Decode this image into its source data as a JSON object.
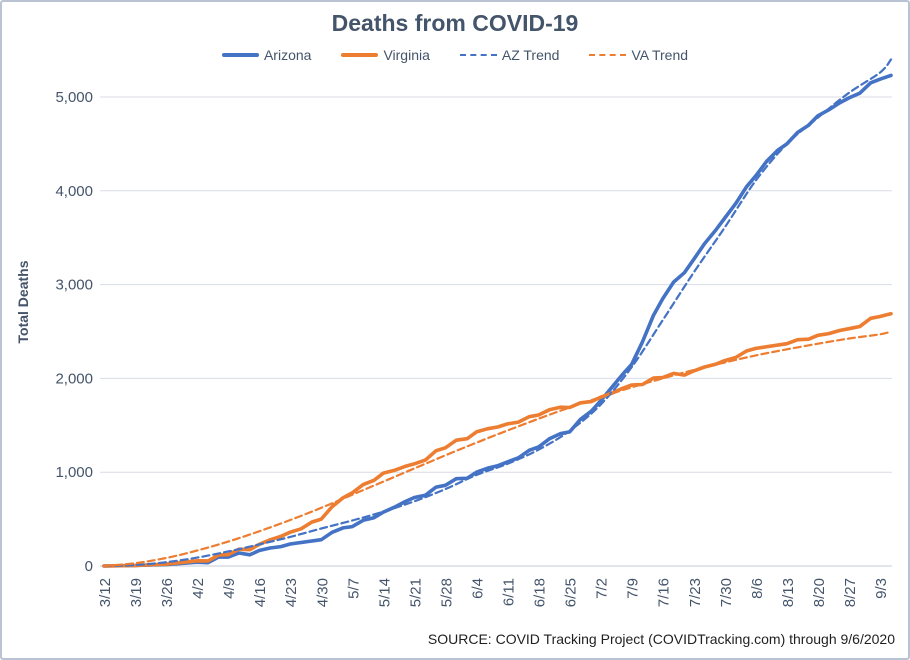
{
  "chart_data": {
    "type": "line",
    "title": "Deaths from COVID-19",
    "ylabel": "Total Deaths",
    "xlabel": "",
    "source_note": "SOURCE: COVID Tracking Project (COVIDTracking.com) through 9/6/2020",
    "ylim": [
      0,
      5000
    ],
    "ytick_interval": 1000,
    "ytick_labels": [
      "0",
      "1,000",
      "2,000",
      "3,000",
      "4,000",
      "5,000"
    ],
    "grid": true,
    "legend_position": "top",
    "x_note": "series lines extend about 3 days beyond the last 9/3 tick (through 9/6)",
    "categories": [
      "3/12",
      "3/19",
      "3/26",
      "4/2",
      "4/9",
      "4/16",
      "4/23",
      "4/30",
      "5/7",
      "5/14",
      "5/21",
      "5/28",
      "6/4",
      "6/11",
      "6/18",
      "6/25",
      "7/2",
      "7/9",
      "7/16",
      "7/23",
      "7/30",
      "8/6",
      "8/13",
      "8/20",
      "8/27",
      "9/3"
    ],
    "series": [
      {
        "name": "Arizona",
        "color": "#4472C4",
        "style": "solid",
        "values": [
          0,
          5,
          15,
          40,
          95,
          165,
          235,
          280,
          420,
          575,
          730,
          860,
          1000,
          1110,
          1270,
          1430,
          1760,
          2150,
          2850,
          3270,
          3710,
          4160,
          4500,
          4800,
          4990,
          5190,
          5230
        ]
      },
      {
        "name": "Virginia",
        "color": "#ED7D31",
        "style": "solid",
        "values": [
          0,
          5,
          20,
          55,
          120,
          230,
          360,
          500,
          780,
          990,
          1090,
          1260,
          1430,
          1515,
          1610,
          1690,
          1800,
          1930,
          2010,
          2080,
          2190,
          2320,
          2370,
          2460,
          2530,
          2660,
          2690
        ]
      },
      {
        "name": "AZ Trend",
        "color": "#4472C4",
        "style": "dashed",
        "values": [
          0,
          10,
          40,
          90,
          155,
          230,
          310,
          400,
          485,
          580,
          690,
          820,
          970,
          1090,
          1240,
          1440,
          1720,
          2120,
          2620,
          3130,
          3610,
          4110,
          4500,
          4780,
          5045,
          5260,
          5400
        ]
      },
      {
        "name": "VA Trend",
        "color": "#ED7D31",
        "style": "dashed",
        "values": [
          0,
          30,
          85,
          165,
          260,
          370,
          490,
          620,
          760,
          900,
          1040,
          1180,
          1315,
          1445,
          1570,
          1690,
          1800,
          1905,
          2000,
          2090,
          2170,
          2245,
          2310,
          2370,
          2425,
          2470,
          2500
        ]
      }
    ]
  },
  "colors": {
    "arizona_blue": "#4472C4",
    "virginia_orange": "#ED7D31",
    "heading_text": "#44546A",
    "tick_text": "#44546A",
    "source_text": "#1F1F1F",
    "gridline": "#D8DDE6",
    "axis_line": "#C6CDD8",
    "frame_border": "#B9C3D3",
    "background": "#FFFFFF"
  }
}
